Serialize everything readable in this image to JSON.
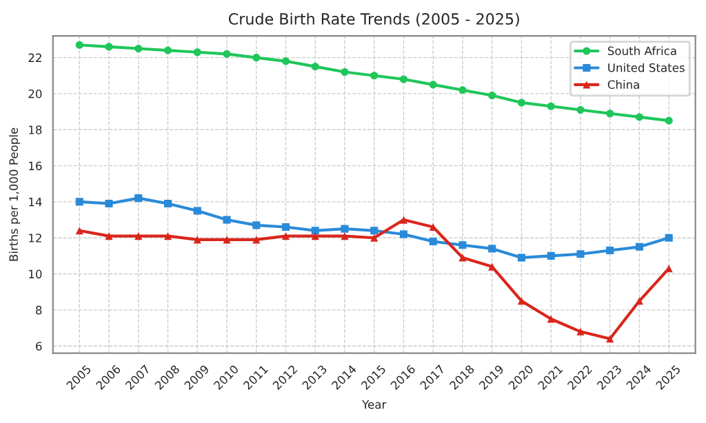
{
  "chart_data": {
    "type": "line",
    "title": "Crude Birth Rate Trends (2005 - 2025)",
    "xlabel": "Year",
    "ylabel": "Births per 1,000 People",
    "categories": [
      "2005",
      "2006",
      "2007",
      "2008",
      "2009",
      "2010",
      "2011",
      "2012",
      "2013",
      "2014",
      "2015",
      "2016",
      "2017",
      "2018",
      "2019",
      "2020",
      "2021",
      "2022",
      "2023",
      "2024",
      "2025"
    ],
    "series": [
      {
        "name": "South Africa",
        "color": "#1fc65a",
        "marker": "circle",
        "values": [
          22.7,
          22.6,
          22.5,
          22.4,
          22.3,
          22.2,
          22.0,
          21.8,
          21.5,
          21.2,
          21.0,
          20.8,
          20.5,
          20.2,
          19.9,
          19.5,
          19.3,
          19.1,
          18.9,
          18.7,
          18.5
        ]
      },
      {
        "name": "United States",
        "color": "#2a8ad8",
        "marker": "square",
        "values": [
          14.0,
          13.9,
          14.2,
          13.9,
          13.5,
          13.0,
          12.7,
          12.6,
          12.4,
          12.5,
          12.4,
          12.2,
          11.8,
          11.6,
          11.4,
          10.9,
          11.0,
          11.1,
          11.3,
          11.5,
          12.0
        ]
      },
      {
        "name": "China",
        "color": "#d9261c",
        "marker": "triangle",
        "values": [
          12.4,
          12.1,
          12.1,
          12.1,
          11.9,
          11.9,
          11.9,
          12.1,
          12.1,
          12.1,
          12.0,
          13.0,
          12.6,
          10.9,
          10.4,
          8.5,
          7.5,
          6.8,
          6.4,
          8.5,
          10.3
        ]
      }
    ],
    "ylim": [
      5.6,
      23.2
    ],
    "yticks": [
      6,
      8,
      10,
      12,
      14,
      16,
      18,
      20,
      22
    ],
    "grid": true,
    "legend": "top right",
    "line_style": "solid"
  }
}
